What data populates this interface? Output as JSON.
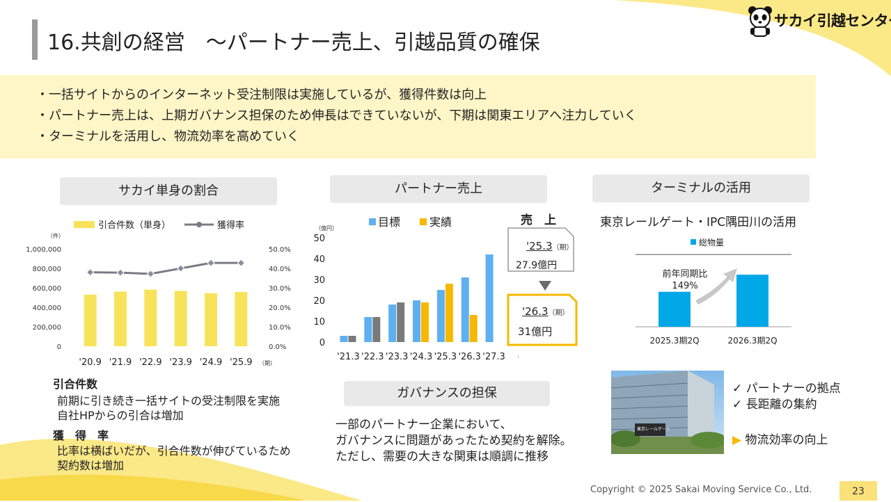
{
  "header": {
    "title": "16.共創の経営　～パートナー売上、引越品質の確保",
    "brand": "サカイ引越センター"
  },
  "summary": [
    "一括サイトからのインターネット受注制限は実施しているが、獲得件数は向上",
    "パートナー売上は、上期ガバナンス担保のため伸長はできていないが、下期は関東エリアへ注力していく",
    "ターミナルを活用し、物流効率を高めていく"
  ],
  "sections": {
    "ratio_title": "サカイ単身の割合",
    "partner_title": "パートナー売上",
    "terminal_title": "ターミナルの活用",
    "governance_title": "ガバナンスの担保"
  },
  "chart_data": [
    {
      "type": "bar+line",
      "left_unit": "（件）",
      "right_unit": "",
      "x_unit": "（期）",
      "categories": [
        "'20.9",
        "'21.9",
        "'22.9",
        "'23.9",
        "'24.9",
        "'25.9"
      ],
      "series": [
        {
          "name": "引合件数（単身）",
          "type": "bar",
          "values": [
            530000,
            562000,
            582000,
            568000,
            545000,
            558000
          ],
          "color": "#f7e35a"
        },
        {
          "name": "獲得率",
          "type": "line",
          "values": [
            0.38,
            0.378,
            0.372,
            0.4,
            0.428,
            0.428
          ],
          "color": "#7a7a85"
        }
      ],
      "yticks_left": [
        "1,000,000",
        "800,000",
        "600,000",
        "400,000",
        "200,000",
        "0"
      ],
      "yticks_right": [
        "50.0%",
        "40.0%",
        "30.0%",
        "20.0%",
        "10.0%",
        "0.0%"
      ],
      "ylim_left": [
        0,
        1000000
      ],
      "ylim_right": [
        0,
        0.5
      ]
    },
    {
      "type": "bar",
      "unit": "（億円）",
      "x_unit": "（期）",
      "categories": [
        "'21.3",
        "'22.3",
        "'23.3",
        "'24.3",
        "'25.3",
        "'26.3",
        "'27.3"
      ],
      "series": [
        {
          "name": "目標",
          "values": [
            3,
            12,
            18,
            20,
            25,
            31,
            42
          ],
          "color": "#5fb0f0"
        },
        {
          "name": "実績",
          "values": [
            3,
            12,
            19,
            19,
            28,
            13,
            null
          ],
          "color_highlight": "#f7b800",
          "color_past": "#7a7a7a"
        }
      ],
      "highlight_categories": [
        "'24.3",
        "'25.3",
        "'26.3"
      ],
      "yticks": [
        "50",
        "40",
        "30",
        "20",
        "10",
        "0"
      ],
      "ylim": [
        0,
        50
      ]
    },
    {
      "type": "bar",
      "categories": [
        "2025.3期2Q",
        "2026.3期2Q"
      ],
      "series": [
        {
          "name": "総物量",
          "values": [
            100,
            149
          ],
          "color": "#00a8e8"
        }
      ],
      "annotation": "前年同期比\n149%"
    }
  ],
  "callout": {
    "title": "売　上",
    "prev_period": "'25.3",
    "prev_suffix": "（期）",
    "prev_value": "27.9億円",
    "cur_period": "'26.3",
    "cur_suffix": "（期）",
    "cur_value": "31億円"
  },
  "ratio_notes": {
    "h1": "引合件数",
    "t1a": "前期に引き続き一括サイトの受注制限を実施",
    "t1b": "自社HPからの引合は増加",
    "h2": "獲　得　率",
    "t2a": "比率は横ばいだが、引合件数が伸びているため",
    "t2b": "契約数は増加"
  },
  "governance_text": [
    "一部のパートナー企業において、",
    "ガバナンスに問題があったため契約を解除。",
    "ただし、需要の大きな関東は順調に推移"
  ],
  "terminal": {
    "subtitle": "東京レールゲート・IPC隅田川の活用",
    "legend": "総物量",
    "annotation_1": "前年同期比",
    "annotation_2": "149%",
    "checks": [
      "パートナーの拠点",
      "長距離の集約"
    ],
    "result": "物流効率の向上",
    "building_sign": "東京レールゲート"
  },
  "footer": {
    "copyright": "Copyright © 2025 Sakai Moving Service Co., Ltd.",
    "page": "23"
  }
}
